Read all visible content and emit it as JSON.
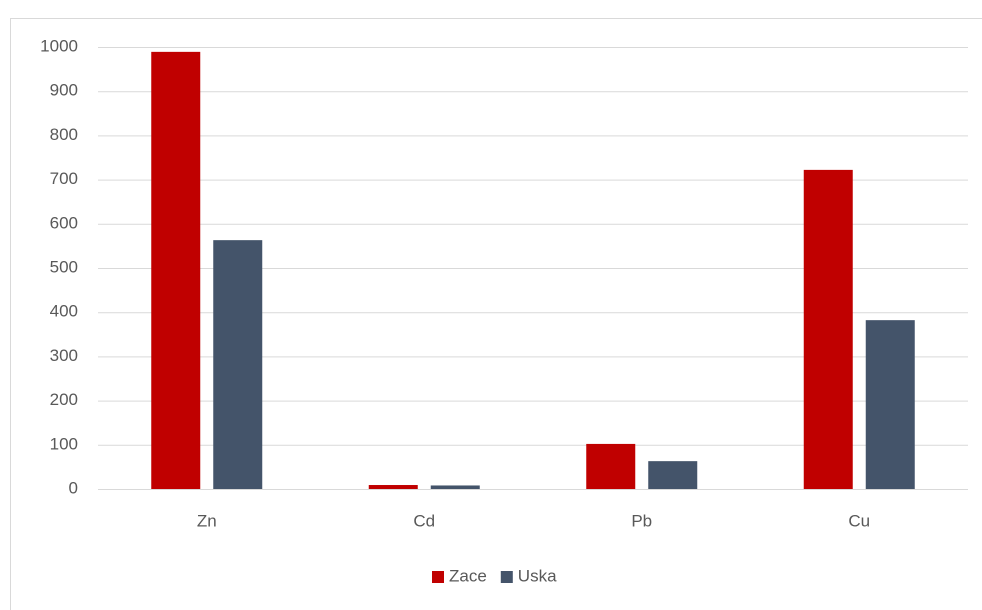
{
  "chart_data": {
    "type": "bar",
    "categories": [
      "Zn",
      "Cd",
      "Pb",
      "Cu"
    ],
    "series": [
      {
        "name": "Zace",
        "color": "#c00000",
        "values": [
          989,
          9,
          102,
          722
        ]
      },
      {
        "name": "Uska",
        "color": "#44546a",
        "values": [
          563,
          8,
          63,
          382
        ]
      }
    ],
    "ylim": [
      0,
      1000
    ],
    "yticks": [
      0,
      100,
      200,
      300,
      400,
      500,
      600,
      700,
      800,
      900,
      1000
    ],
    "grid": true,
    "legend": "bottom"
  }
}
